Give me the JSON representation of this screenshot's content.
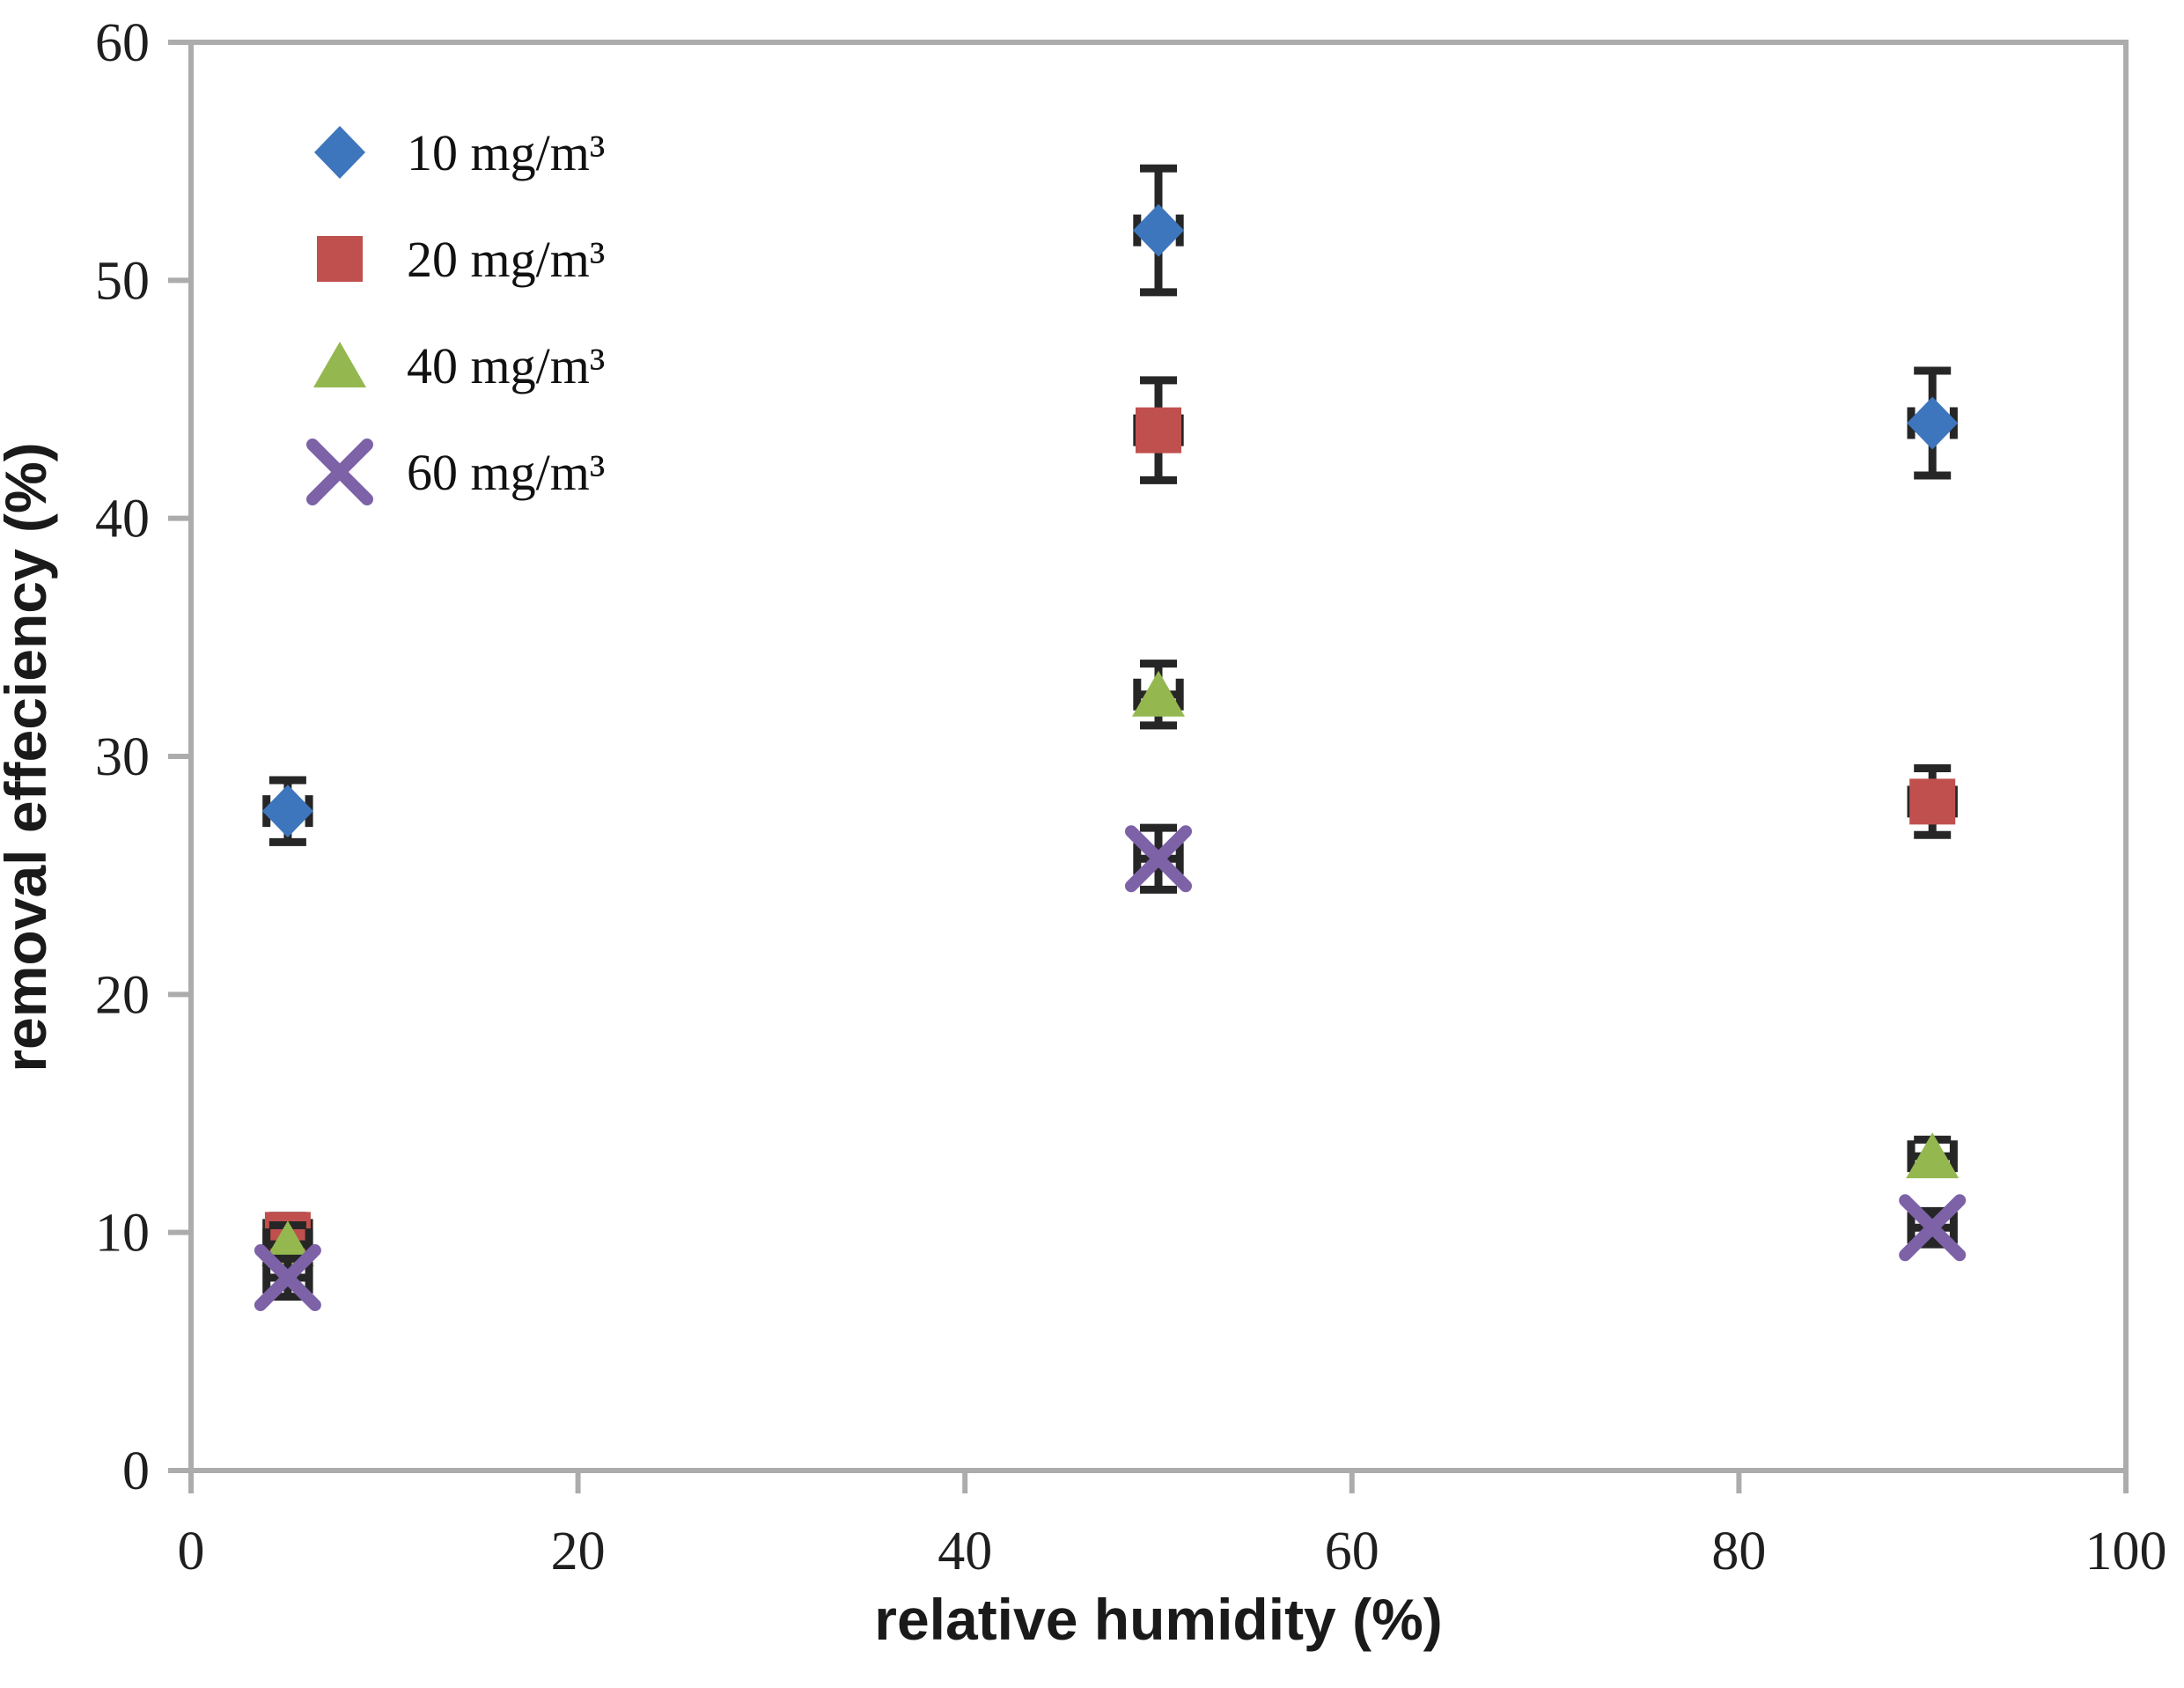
{
  "chart_data": {
    "type": "scatter",
    "title": "",
    "xlabel": "relative humidity (%)",
    "ylabel": "removal effeciency (%)",
    "xlim": [
      0,
      100
    ],
    "ylim": [
      0,
      60
    ],
    "xticks": [
      0,
      20,
      40,
      60,
      80,
      100
    ],
    "yticks": [
      0,
      10,
      20,
      30,
      40,
      50,
      60
    ],
    "grid": false,
    "legend_position": "inside-top-left",
    "axis_color": "#acacac",
    "error_bar_color": "#262626",
    "text_color": "#1f1f1f",
    "series": [
      {
        "name": "10 mg/m³",
        "marker": "diamond",
        "color": "#3e76bd",
        "points": [
          {
            "x": 5,
            "y": 27.7,
            "yerr": 1.3,
            "xerr": 1.1
          },
          {
            "x": 50,
            "y": 52.1,
            "yerr": 2.6,
            "xerr": 1.1
          },
          {
            "x": 90,
            "y": 44.0,
            "yerr": 2.2,
            "xerr": 1.1
          }
        ]
      },
      {
        "name": "20 mg/m³",
        "marker": "square",
        "color": "#c0504d",
        "points": [
          {
            "x": 5,
            "y": 9.9,
            "yerr": 0.8,
            "xerr": 1.1
          },
          {
            "x": 50,
            "y": 43.7,
            "yerr": 2.1,
            "xerr": 1.1
          },
          {
            "x": 90,
            "y": 28.1,
            "yerr": 1.4,
            "xerr": 1.1
          }
        ]
      },
      {
        "name": "40 mg/m³",
        "marker": "triangle",
        "color": "#94b84f",
        "points": [
          {
            "x": 5,
            "y": 9.5,
            "yerr": 0.8,
            "xerr": 1.1
          },
          {
            "x": 50,
            "y": 32.6,
            "yerr": 1.3,
            "xerr": 1.1
          },
          {
            "x": 90,
            "y": 13.2,
            "yerr": 0.7,
            "xerr": 1.1
          }
        ]
      },
      {
        "name": "60 mg/m³",
        "marker": "x",
        "color": "#7d62a8",
        "points": [
          {
            "x": 5,
            "y": 8.1,
            "yerr": 0.8,
            "xerr": 1.1
          },
          {
            "x": 50,
            "y": 25.7,
            "yerr": 1.3,
            "xerr": 1.1
          },
          {
            "x": 90,
            "y": 10.2,
            "yerr": 0.7,
            "xerr": 1.1
          }
        ]
      }
    ]
  }
}
